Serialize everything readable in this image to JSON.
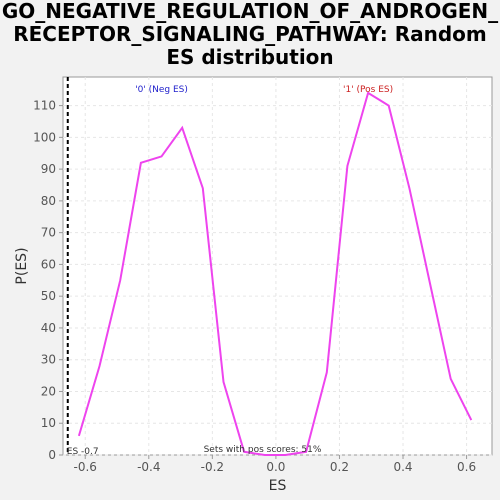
{
  "title_lines": [
    "GO_NEGATIVE_REGULATION_OF_ANDROGEN_",
    "RECEPTOR_SIGNALING_PATHWAY: Random",
    "ES distribution"
  ],
  "chart_data": {
    "type": "line",
    "xlabel": "ES",
    "ylabel": "P(ES)",
    "xlim": [
      -0.67,
      0.68
    ],
    "ylim": [
      0,
      119
    ],
    "xticks": [
      -0.6,
      -0.4,
      -0.2,
      0.0,
      0.2,
      0.4,
      0.6
    ],
    "xtick_labels": [
      "-0.6",
      "-0.4",
      "-0.2",
      "0.0",
      "0.2",
      "0.4",
      "0.6"
    ],
    "yticks": [
      0,
      10,
      20,
      30,
      40,
      50,
      60,
      70,
      80,
      90,
      100,
      110
    ],
    "grid": true,
    "series": [
      {
        "color": "#ee44ee",
        "x": [
          -0.62,
          -0.555,
          -0.49,
          -0.425,
          -0.36,
          -0.295,
          -0.23,
          -0.165,
          -0.1,
          -0.035,
          0.03,
          0.095,
          0.16,
          0.225,
          0.29,
          0.355,
          0.42,
          0.485,
          0.55,
          0.615
        ],
        "y": [
          6,
          28,
          55,
          92,
          94,
          103,
          84,
          23,
          1,
          0,
          0,
          1,
          26,
          91,
          114,
          110,
          84,
          54,
          24,
          11
        ]
      }
    ],
    "annotations": {
      "neg_label": "'0' (Neg ES)",
      "neg_color": "#2222cc",
      "neg_x": -0.36,
      "pos_label": "'1' (Pos ES)",
      "pos_color": "#cc2222",
      "pos_x": 0.29,
      "sets_text": "Sets with pos scores: 51%",
      "es_text": "ES -0.7",
      "es_value": -0.655
    }
  }
}
